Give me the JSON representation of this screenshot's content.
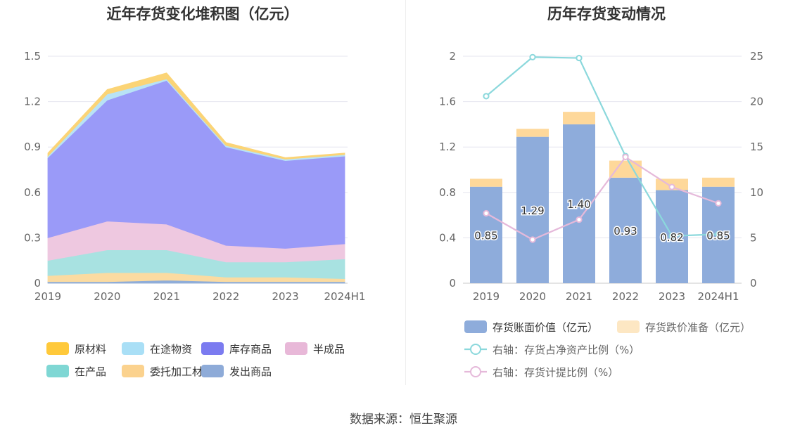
{
  "source_text": "数据来源：恒生聚源",
  "chart_data": [
    {
      "type": "area",
      "title": "近年存货变化堆积图（亿元）",
      "stacked": true,
      "categories": [
        "2019",
        "2020",
        "2021",
        "2022",
        "2023",
        "2024H1"
      ],
      "ylim": [
        0,
        1.5
      ],
      "yticks": [
        "0",
        "0.3",
        "0.6",
        "0.9",
        "1.2",
        "1.5"
      ],
      "grid": true,
      "legend_position": "bottom",
      "series": [
        {
          "name": "发出商品",
          "color": "#8fadd9",
          "values": [
            0.01,
            0.01,
            0.02,
            0.01,
            0.01,
            0.01
          ]
        },
        {
          "name": "委托加工材料",
          "color": "#fbdba1",
          "values": [
            0.04,
            0.06,
            0.05,
            0.03,
            0.03,
            0.02
          ]
        },
        {
          "name": "在产品",
          "color": "#a8e2e1",
          "values": [
            0.1,
            0.15,
            0.15,
            0.1,
            0.1,
            0.13
          ]
        },
        {
          "name": "半成品",
          "color": "#eec8e0",
          "values": [
            0.15,
            0.19,
            0.17,
            0.11,
            0.09,
            0.1
          ]
        },
        {
          "name": "库存商品",
          "color": "#9a9af8",
          "values": [
            0.53,
            0.8,
            0.95,
            0.65,
            0.58,
            0.58
          ]
        },
        {
          "name": "在途物资",
          "color": "#b8e2f6",
          "values": [
            0.01,
            0.04,
            0.01,
            0.01,
            0.01,
            0.01
          ]
        },
        {
          "name": "原材料",
          "color": "#fbd476",
          "values": [
            0.02,
            0.03,
            0.04,
            0.02,
            0.01,
            0.01
          ]
        }
      ],
      "legend": [
        {
          "name": "原材料",
          "color": "#ffc93b"
        },
        {
          "name": "在途物资",
          "color": "#a9dff6"
        },
        {
          "name": "库存商品",
          "color": "#7b7bf0"
        },
        {
          "name": "半成品",
          "color": "#e8b8d8"
        },
        {
          "name": "在产品",
          "color": "#7fd7d4"
        },
        {
          "name": "委托加工材料",
          "color": "#fbd28e"
        },
        {
          "name": "发出商品",
          "color": "#8eabd8"
        }
      ]
    },
    {
      "type": "bar",
      "title": "历年存货变动情况",
      "stacked": true,
      "categories": [
        "2019",
        "2020",
        "2021",
        "2022",
        "2023",
        "2024H1"
      ],
      "ylim": [
        0,
        2
      ],
      "yticks": [
        "0",
        "0.4",
        "0.8",
        "1.2",
        "1.6",
        "2"
      ],
      "y2lim": [
        0,
        25
      ],
      "y2ticks": [
        "0",
        "5",
        "10",
        "15",
        "20",
        "25"
      ],
      "grid": true,
      "legend_position": "bottom",
      "series": [
        {
          "name": "存货账面价值（亿元）",
          "type": "bar",
          "color": "#8eacdb",
          "values": [
            0.85,
            1.29,
            1.4,
            0.93,
            0.82,
            0.85
          ],
          "labels": [
            "0.85",
            "1.29",
            "1.40",
            "0.93",
            "0.82",
            "0.85"
          ]
        },
        {
          "name": "存货跌价准备（亿元）",
          "type": "bar",
          "color": "#fed89a",
          "legend_color": "#fde7c3",
          "values": [
            0.07,
            0.07,
            0.11,
            0.15,
            0.1,
            0.08
          ]
        },
        {
          "name": "右轴：存货占净资产比例（%）",
          "type": "line",
          "axis": "right",
          "color": "#8bd8dc",
          "values": [
            20.6,
            24.9,
            24.8,
            14.0,
            5.2,
            5.4
          ]
        },
        {
          "name": "右轴：存货计提比例（%）",
          "type": "line",
          "axis": "right",
          "color": "#e5b9da",
          "values": [
            7.7,
            4.8,
            7.0,
            13.9,
            10.6,
            8.8
          ]
        }
      ]
    }
  ]
}
